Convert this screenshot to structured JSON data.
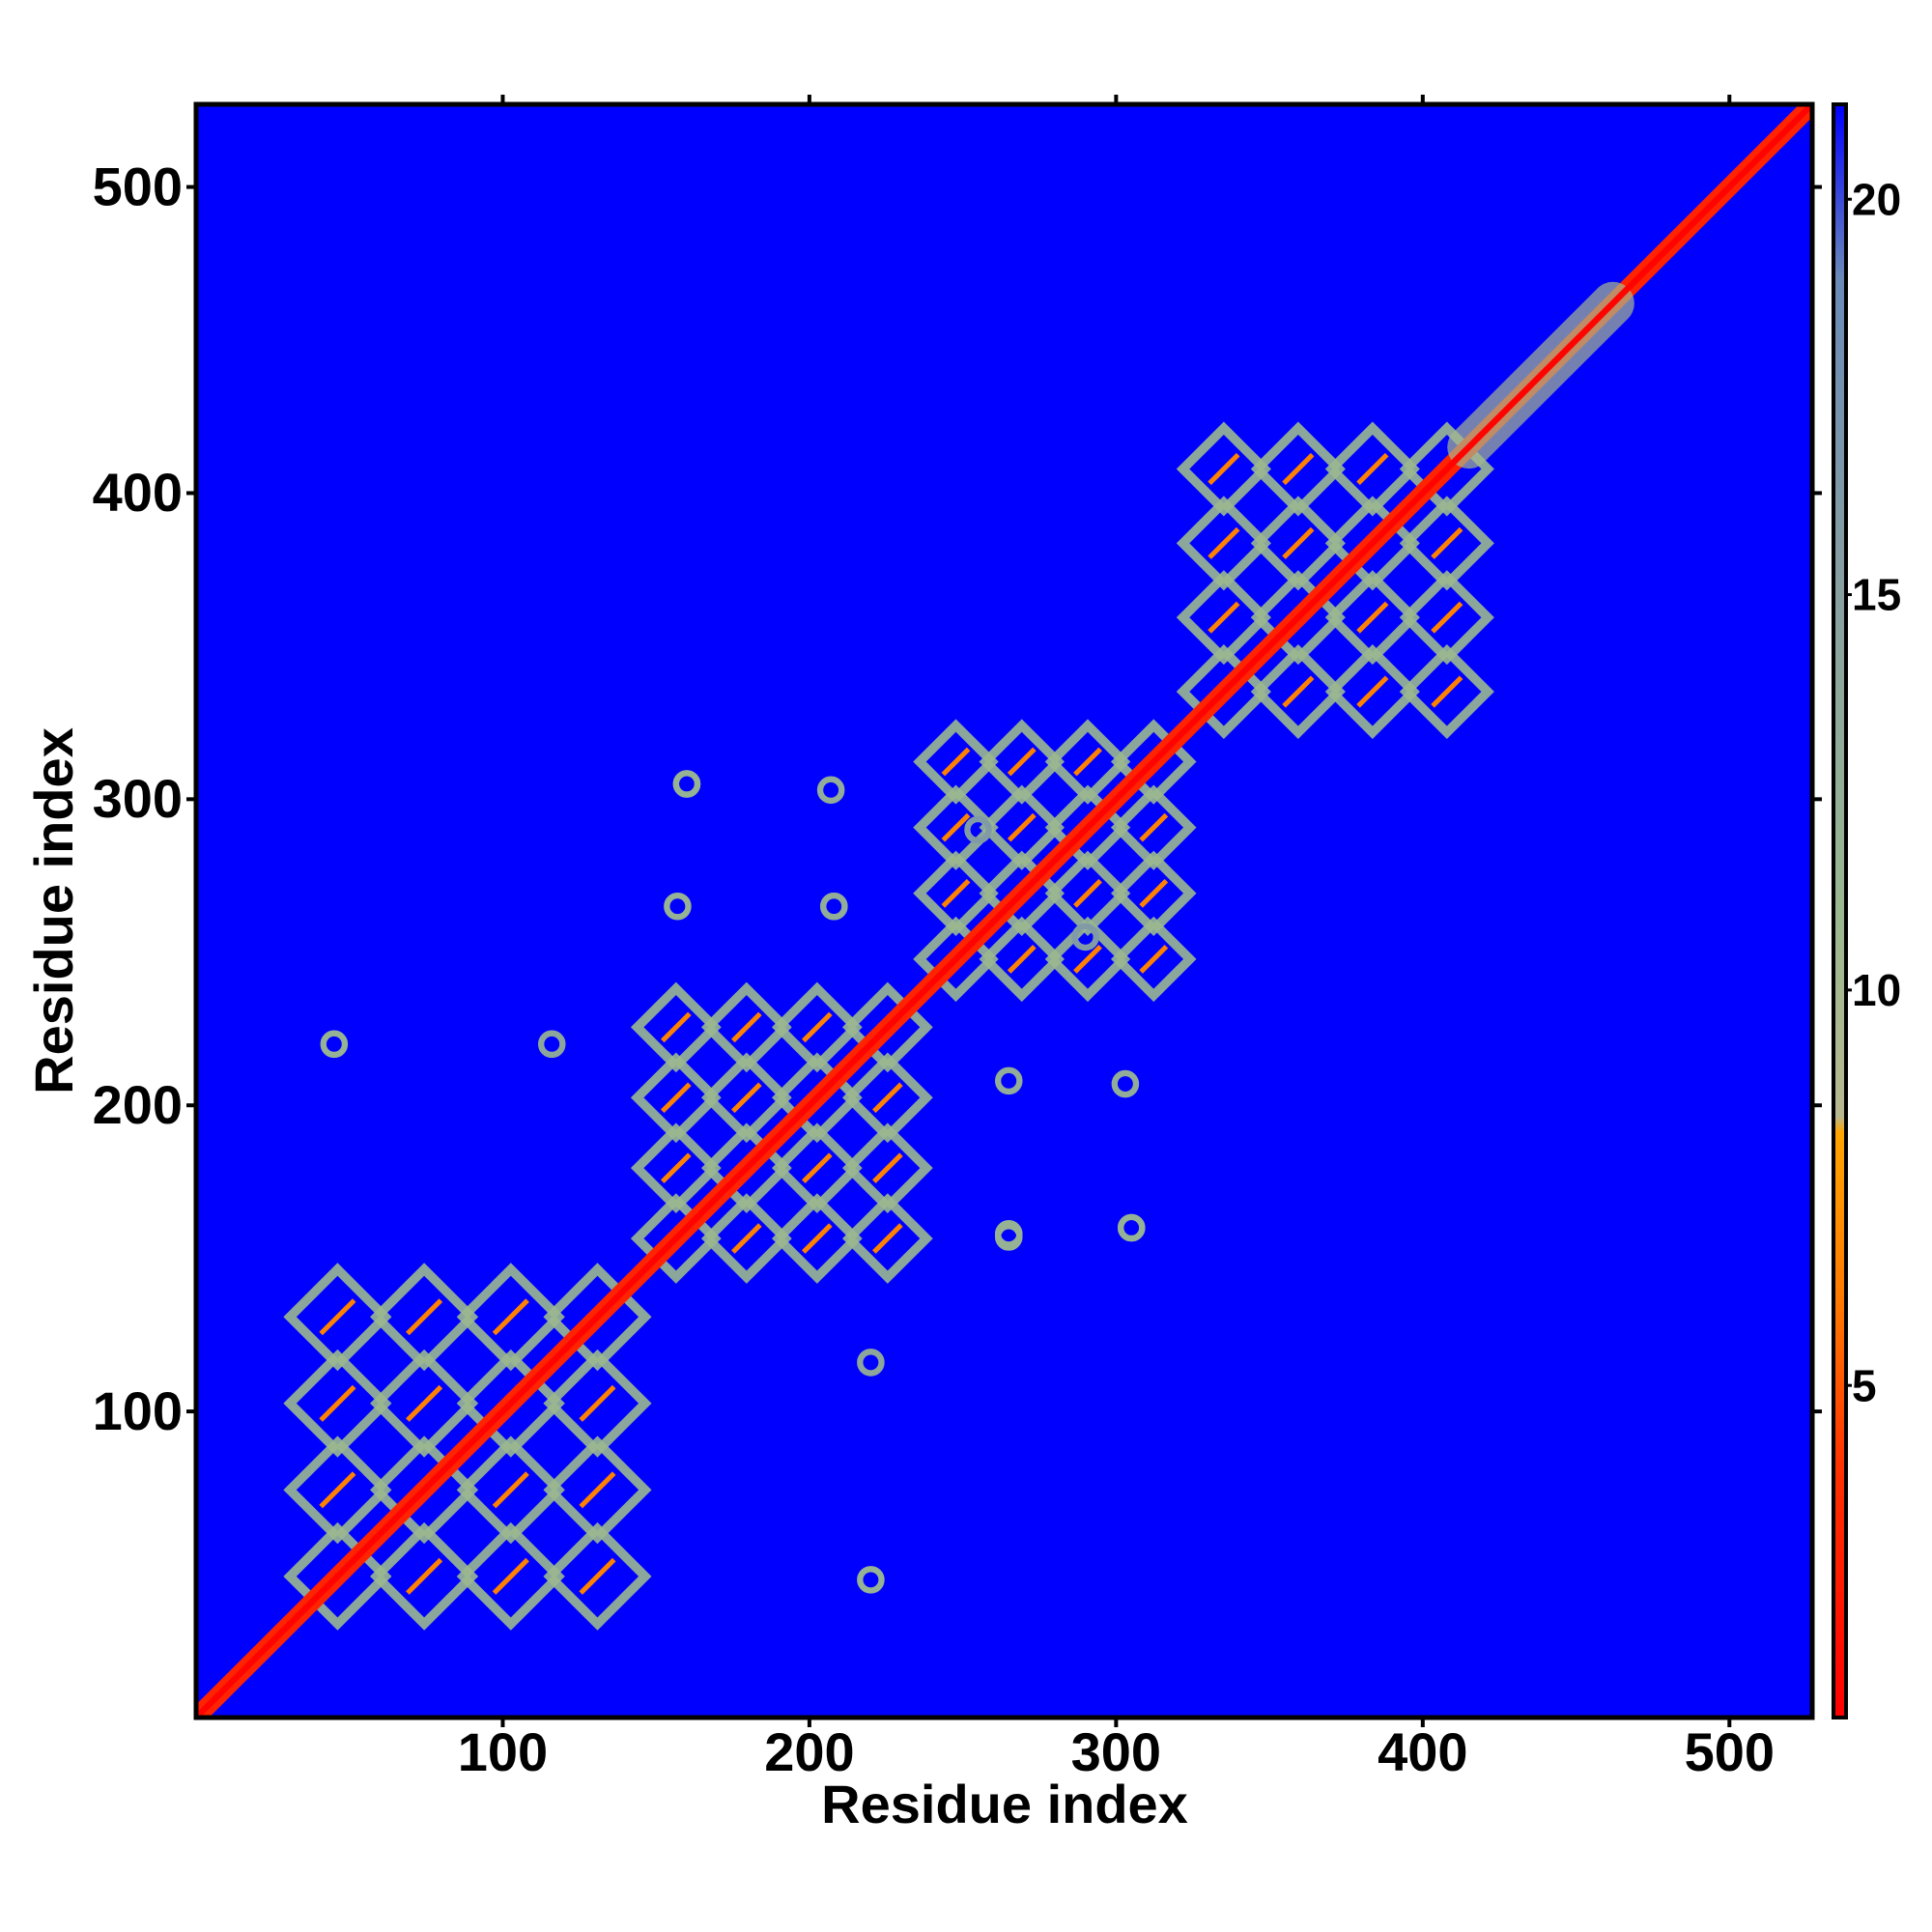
{
  "chart_data": {
    "type": "heatmap",
    "xlabel": "Residue index",
    "ylabel": "Residue index",
    "xlim": [
      0,
      527
    ],
    "ylim": [
      0,
      527
    ],
    "xticks": [
      100,
      200,
      300,
      400,
      500
    ],
    "yticks": [
      100,
      200,
      300,
      400,
      500
    ],
    "background_color": "#0000ff",
    "colormap": [
      {
        "value": 0.8,
        "color": "#ff0000"
      },
      {
        "value": 4,
        "color": "#ff3300"
      },
      {
        "value": 6,
        "color": "#ff7700"
      },
      {
        "value": 8.2,
        "color": "#ffa500"
      },
      {
        "value": 8.4,
        "color": "#b8b890"
      },
      {
        "value": 11,
        "color": "#9ab890"
      },
      {
        "value": 15,
        "color": "#88a0a0"
      },
      {
        "value": 19,
        "color": "#6a8ab8"
      },
      {
        "value": 21.2,
        "color": "#0000ff"
      }
    ],
    "clim": [
      0.8,
      21.2
    ],
    "cticks": [
      5,
      10,
      15,
      20
    ],
    "diagonal_segments": [
      {
        "start": 1,
        "end": 527,
        "value": 3
      },
      {
        "start": 415,
        "end": 462,
        "value": 10
      }
    ],
    "domains": [
      {
        "start": 32,
        "end": 145,
        "value": 11
      },
      {
        "start": 145,
        "end": 237,
        "value": 11
      },
      {
        "start": 237,
        "end": 323,
        "value": 11
      },
      {
        "start": 323,
        "end": 420,
        "value": 11
      }
    ],
    "spots": {
      "x": [
        45,
        220,
        160,
        305,
        157,
        265,
        207,
        303,
        208,
        265,
        265,
        208,
        305,
        160,
        116,
        220,
        255,
        290
      ],
      "y": [
        220,
        45,
        305,
        160,
        265,
        157,
        303,
        207,
        265,
        208,
        158,
        265,
        160,
        305,
        220,
        116,
        290,
        255
      ],
      "values": [
        12,
        12,
        12,
        12,
        12,
        12,
        13,
        13,
        13,
        13,
        12,
        13,
        12,
        12,
        14,
        14,
        16,
        16
      ]
    }
  }
}
